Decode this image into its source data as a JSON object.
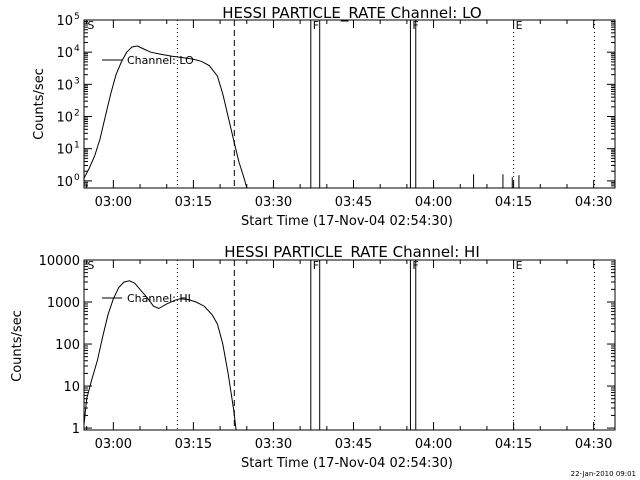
{
  "footer_date": "22-Jan-2010 09:01",
  "chart_data": [
    {
      "type": "line",
      "title": "HESSI PARTICLE_RATE Channel: LO",
      "xlabel": "Start Time (17-Nov-04 02:54:30)",
      "ylabel": "Counts/sec",
      "yscale": "log",
      "xlim": [
        "02:54:30",
        "04:34:00"
      ],
      "ylim": [
        0.6,
        100000
      ],
      "x_ticks": [
        "03:00",
        "03:15",
        "03:30",
        "03:45",
        "04:00",
        "04:15",
        "04:30"
      ],
      "y_ticks": [
        {
          "base": "10",
          "exp": "0",
          "value": 1
        },
        {
          "base": "10",
          "exp": "1",
          "value": 10
        },
        {
          "base": "10",
          "exp": "2",
          "value": 100
        },
        {
          "base": "10",
          "exp": "3",
          "value": 1000
        },
        {
          "base": "10",
          "exp": "4",
          "value": 10000
        },
        {
          "base": "10",
          "exp": "5",
          "value": 100000
        }
      ],
      "legend": {
        "label": "Channel: LO",
        "placement": "top-left"
      },
      "flags": [
        {
          "label": "S",
          "time": "02:54:45",
          "style": "none"
        },
        {
          "label": "F",
          "time": "03:37:00",
          "style": "solid"
        },
        {
          "label": "F",
          "time": "03:55:40",
          "style": "solid"
        },
        {
          "label": "E",
          "time": "04:15:00",
          "style": "dotted"
        }
      ],
      "vlines": [
        {
          "time": "03:12:00",
          "style": "dotted"
        },
        {
          "time": "03:22:40",
          "style": "dashed"
        },
        {
          "time": "03:37:00",
          "style": "solid"
        },
        {
          "time": "03:38:40",
          "style": "solid"
        },
        {
          "time": "03:55:40",
          "style": "solid"
        },
        {
          "time": "03:56:40",
          "style": "solid"
        },
        {
          "time": "04:15:00",
          "style": "dotted"
        },
        {
          "time": "04:30:10",
          "style": "dotted"
        }
      ],
      "series": [
        {
          "name": "Channel: LO",
          "points": [
            [
              "02:54:30",
              1.2
            ],
            [
              "02:55:30",
              2.5
            ],
            [
              "02:56:30",
              6
            ],
            [
              "02:57:30",
              20
            ],
            [
              "02:58:30",
              100
            ],
            [
              "02:59:30",
              500
            ],
            [
              "03:00:30",
              2000
            ],
            [
              "03:01:30",
              5000
            ],
            [
              "03:02:30",
              10000
            ],
            [
              "03:03:30",
              14500
            ],
            [
              "03:04:30",
              15500
            ],
            [
              "03:05:30",
              13000
            ],
            [
              "03:07:00",
              10000
            ],
            [
              "03:09:00",
              8500
            ],
            [
              "03:11:00",
              7500
            ],
            [
              "03:13:00",
              6800
            ],
            [
              "03:15:00",
              6000
            ],
            [
              "03:16:30",
              5200
            ],
            [
              "03:18:00",
              3800
            ],
            [
              "03:19:30",
              1800
            ],
            [
              "03:20:30",
              500
            ],
            [
              "03:21:30",
              100
            ],
            [
              "03:22:30",
              20
            ],
            [
              "03:23:30",
              4
            ],
            [
              "03:24:30",
              1.2
            ],
            [
              "03:25:00",
              0.6
            ]
          ]
        }
      ],
      "spikes": [
        {
          "time": "04:07:30",
          "value": 1.6
        },
        {
          "time": "04:13:00",
          "value": 1.6
        },
        {
          "time": "04:14:45",
          "value": 1.3
        },
        {
          "time": "04:16:00",
          "value": 1.5
        }
      ]
    },
    {
      "type": "line",
      "title": "HESSI PARTICLE_RATE Channel: HI",
      "xlabel": "Start Time (17-Nov-04 02:54:30)",
      "ylabel": "Counts/sec",
      "yscale": "log",
      "xlim": [
        "02:54:30",
        "04:34:00"
      ],
      "ylim": [
        0.9,
        10000
      ],
      "x_ticks": [
        "03:00",
        "03:15",
        "03:30",
        "03:45",
        "04:00",
        "04:15",
        "04:30"
      ],
      "y_ticks": [
        {
          "label": "1",
          "value": 1
        },
        {
          "label": "10",
          "value": 10
        },
        {
          "label": "100",
          "value": 100
        },
        {
          "label": "1000",
          "value": 1000
        },
        {
          "label": "10000",
          "value": 10000
        }
      ],
      "legend": {
        "label": "Channel: HI",
        "placement": "top-left"
      },
      "flags": [
        {
          "label": "S",
          "time": "02:54:45",
          "style": "none"
        },
        {
          "label": "F",
          "time": "03:37:00",
          "style": "solid"
        },
        {
          "label": "F",
          "time": "03:55:40",
          "style": "solid"
        },
        {
          "label": "E",
          "time": "04:15:00",
          "style": "dotted"
        }
      ],
      "vlines": [
        {
          "time": "03:12:00",
          "style": "dotted"
        },
        {
          "time": "03:22:40",
          "style": "dashed"
        },
        {
          "time": "03:37:00",
          "style": "solid"
        },
        {
          "time": "03:38:40",
          "style": "solid"
        },
        {
          "time": "03:55:40",
          "style": "solid"
        },
        {
          "time": "03:56:40",
          "style": "solid"
        },
        {
          "time": "04:15:00",
          "style": "dotted"
        },
        {
          "time": "04:30:10",
          "style": "dotted"
        }
      ],
      "series": [
        {
          "name": "Channel: HI",
          "points": [
            [
              "02:54:30",
              1.2
            ],
            [
              "02:55:00",
              5
            ],
            [
              "02:56:00",
              15
            ],
            [
              "02:57:00",
              40
            ],
            [
              "02:58:00",
              150
            ],
            [
              "02:59:00",
              500
            ],
            [
              "03:00:00",
              1200
            ],
            [
              "03:01:00",
              2200
            ],
            [
              "03:02:00",
              3000
            ],
            [
              "03:03:00",
              3200
            ],
            [
              "03:04:00",
              2800
            ],
            [
              "03:05:00",
              2000
            ],
            [
              "03:06:30",
              1200
            ],
            [
              "03:07:30",
              800
            ],
            [
              "03:08:30",
              700
            ],
            [
              "03:10:00",
              900
            ],
            [
              "03:11:30",
              1100
            ],
            [
              "03:12:30",
              1200
            ],
            [
              "03:14:00",
              1150
            ],
            [
              "03:15:30",
              1000
            ],
            [
              "03:17:00",
              800
            ],
            [
              "03:18:30",
              500
            ],
            [
              "03:19:30",
              300
            ],
            [
              "03:20:30",
              100
            ],
            [
              "03:21:30",
              20
            ],
            [
              "03:22:30",
              3
            ],
            [
              "03:23:00",
              0.9
            ]
          ]
        }
      ],
      "spikes": []
    }
  ]
}
